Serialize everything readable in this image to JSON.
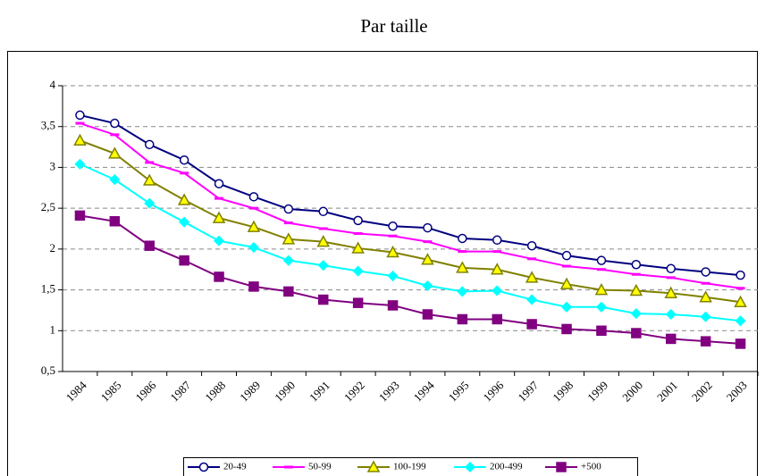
{
  "chart_data": {
    "type": "line",
    "title": "Par taille",
    "categories": [
      "1984",
      "1985",
      "1986",
      "1987",
      "1988",
      "1989",
      "1990",
      "1991",
      "1992",
      "1993",
      "1994",
      "1995",
      "1996",
      "1997",
      "1998",
      "1999",
      "2000",
      "2001",
      "2002",
      "2003"
    ],
    "series": [
      {
        "name": "20-49",
        "color": "#000080",
        "marker": "circle",
        "values": [
          3.64,
          3.54,
          3.28,
          3.09,
          2.8,
          2.64,
          2.49,
          2.46,
          2.35,
          2.28,
          2.26,
          2.13,
          2.11,
          2.04,
          1.92,
          1.86,
          1.81,
          1.76,
          1.72,
          1.68
        ]
      },
      {
        "name": "50-99",
        "color": "#ff00ff",
        "marker": "dash",
        "values": [
          3.54,
          3.4,
          3.06,
          2.93,
          2.62,
          2.5,
          2.32,
          2.25,
          2.19,
          2.16,
          2.09,
          1.97,
          1.97,
          1.88,
          1.79,
          1.75,
          1.69,
          1.65,
          1.58,
          1.52
        ]
      },
      {
        "name": "100-199",
        "color": "#808000",
        "marker": "triangle",
        "values": [
          3.33,
          3.17,
          2.84,
          2.6,
          2.38,
          2.27,
          2.12,
          2.09,
          2.01,
          1.96,
          1.87,
          1.77,
          1.75,
          1.65,
          1.57,
          1.5,
          1.49,
          1.46,
          1.41,
          1.35
        ]
      },
      {
        "name": "200-499",
        "color": "#00ffff",
        "marker": "diamond",
        "values": [
          3.04,
          2.85,
          2.56,
          2.33,
          2.1,
          2.02,
          1.86,
          1.8,
          1.73,
          1.67,
          1.55,
          1.48,
          1.49,
          1.38,
          1.29,
          1.29,
          1.21,
          1.2,
          1.17,
          1.12
        ]
      },
      {
        "name": "+500",
        "color": "#800080",
        "marker": "square",
        "values": [
          2.41,
          2.34,
          2.04,
          1.86,
          1.66,
          1.54,
          1.48,
          1.38,
          1.34,
          1.31,
          1.2,
          1.14,
          1.14,
          1.08,
          1.02,
          1.0,
          0.97,
          0.9,
          0.87,
          0.84
        ]
      }
    ],
    "ylim": [
      0.5,
      4
    ],
    "yticks": [
      {
        "value": 0.5,
        "label": "0,5"
      },
      1,
      {
        "value": 1.5,
        "label": "1,5"
      },
      2,
      {
        "value": 2.5,
        "label": "2,5"
      },
      3,
      {
        "value": 3.5,
        "label": "3,5"
      },
      4
    ],
    "grid": true,
    "legend": "bottom"
  }
}
